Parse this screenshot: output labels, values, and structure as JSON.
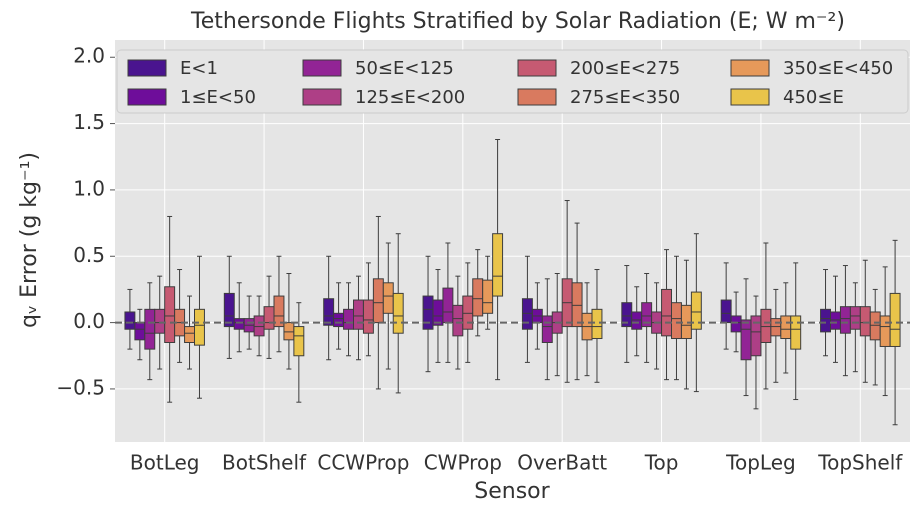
{
  "chart_data": {
    "type": "box",
    "title": "Tethersonde Flights Stratified by Solar Radiation (E; W m⁻²)",
    "xlabel": "Sensor",
    "ylabel": "qᵥ Error (g kg⁻¹)",
    "categories": [
      "BotLeg",
      "BotShelf",
      "CCWProp",
      "CWProp",
      "OverBatt",
      "Top",
      "TopLeg",
      "TopShelf"
    ],
    "ylim": [
      -0.9,
      2.13
    ],
    "yticks": [
      {
        "value": -0.5,
        "label": "−0.5"
      },
      {
        "value": 0,
        "label": "0.0"
      },
      {
        "value": 0.5,
        "label": "0.5"
      },
      {
        "value": 1,
        "label": "1.0"
      },
      {
        "value": 1.5,
        "label": "1.5"
      },
      {
        "value": 2,
        "label": "2.0"
      }
    ],
    "grid": true,
    "reference_line": 0,
    "legend": "top",
    "series": [
      {
        "name": "E<1",
        "color": "#4a148f",
        "whislo": [
          -0.2,
          -0.27,
          -0.28,
          -0.37,
          -0.3,
          -0.3,
          -0.2,
          -0.25
        ],
        "q1": [
          -0.05,
          -0.03,
          -0.02,
          -0.05,
          -0.05,
          -0.03,
          0.0,
          -0.07
        ],
        "med": [
          0.0,
          0.05,
          0.05,
          0.1,
          0.07,
          0.05,
          0.07,
          0.03
        ],
        "q3": [
          0.08,
          0.22,
          0.18,
          0.2,
          0.18,
          0.15,
          0.17,
          0.1
        ],
        "whishi": [
          0.25,
          0.5,
          0.5,
          0.5,
          0.5,
          0.43,
          0.45,
          0.4
        ]
      },
      {
        "name": "1≤E<50",
        "color": "#6e0d9a",
        "whislo": [
          -0.28,
          -0.22,
          -0.2,
          -0.3,
          -0.2,
          -0.25,
          -0.22,
          -0.3
        ],
        "q1": [
          -0.13,
          -0.05,
          -0.03,
          -0.02,
          0.0,
          -0.05,
          -0.07,
          -0.05
        ],
        "med": [
          -0.05,
          0.0,
          0.03,
          0.05,
          0.05,
          0.02,
          0.0,
          0.02
        ],
        "q3": [
          0.0,
          0.03,
          0.07,
          0.17,
          0.1,
          0.08,
          0.05,
          0.08
        ],
        "whishi": [
          0.1,
          0.3,
          0.3,
          0.4,
          0.3,
          0.27,
          0.23,
          0.35
        ]
      },
      {
        "name": "50≤E<125",
        "color": "#922495",
        "whislo": [
          -0.43,
          -0.2,
          -0.25,
          -0.3,
          -0.43,
          -0.3,
          -0.55,
          -0.4
        ],
        "q1": [
          -0.2,
          -0.07,
          -0.05,
          0.0,
          -0.15,
          -0.03,
          -0.28,
          -0.08
        ],
        "med": [
          -0.08,
          -0.02,
          0.0,
          0.08,
          -0.03,
          0.05,
          -0.05,
          0.03
        ],
        "q3": [
          0.1,
          0.03,
          0.1,
          0.26,
          0.05,
          0.15,
          0.02,
          0.12
        ],
        "whishi": [
          0.3,
          0.2,
          0.3,
          0.6,
          0.33,
          0.37,
          0.33,
          0.43
        ]
      },
      {
        "name": "125≤E<200",
        "color": "#ae3f86",
        "whislo": [
          -0.35,
          -0.25,
          -0.28,
          -0.35,
          -0.4,
          -0.35,
          -0.65,
          -0.37
        ],
        "q1": [
          -0.08,
          -0.1,
          -0.05,
          -0.1,
          -0.08,
          -0.08,
          -0.25,
          -0.05
        ],
        "med": [
          0.0,
          -0.03,
          0.05,
          0.03,
          0.0,
          0.0,
          -0.07,
          0.05
        ],
        "q3": [
          0.1,
          0.05,
          0.17,
          0.13,
          0.08,
          0.08,
          0.05,
          0.12
        ],
        "whishi": [
          0.35,
          0.2,
          0.35,
          0.35,
          0.37,
          0.3,
          0.2,
          0.3
        ]
      },
      {
        "name": "200≤E<275",
        "color": "#c65a72",
        "whislo": [
          -0.6,
          -0.27,
          -0.25,
          -0.3,
          -0.45,
          -0.43,
          -0.5,
          -0.45
        ],
        "q1": [
          -0.15,
          -0.05,
          -0.08,
          -0.05,
          -0.03,
          -0.1,
          -0.15,
          -0.1
        ],
        "med": [
          0.05,
          0.0,
          0.02,
          0.07,
          0.15,
          0.05,
          -0.03,
          0.0
        ],
        "q3": [
          0.27,
          0.12,
          0.17,
          0.2,
          0.33,
          0.25,
          0.1,
          0.12
        ],
        "whishi": [
          0.8,
          0.35,
          0.45,
          0.45,
          0.92,
          0.55,
          0.6,
          0.47
        ]
      },
      {
        "name": "275≤E<350",
        "color": "#d97a5f",
        "whislo": [
          -0.3,
          -0.22,
          -0.5,
          -0.1,
          -0.43,
          -0.43,
          -0.45,
          -0.47
        ],
        "q1": [
          -0.1,
          -0.03,
          0.0,
          0.05,
          -0.03,
          -0.12,
          -0.1,
          -0.13
        ],
        "med": [
          0.0,
          0.05,
          0.15,
          0.18,
          0.13,
          0.03,
          -0.03,
          -0.02
        ],
        "q3": [
          0.1,
          0.2,
          0.33,
          0.33,
          0.3,
          0.15,
          0.03,
          0.08
        ],
        "whishi": [
          0.4,
          0.5,
          0.8,
          0.55,
          0.75,
          0.5,
          0.25,
          0.25
        ]
      },
      {
        "name": "350≤E<450",
        "color": "#e6995a",
        "whislo": [
          -0.35,
          -0.35,
          -0.35,
          -0.05,
          -0.4,
          -0.5,
          -0.38,
          -0.55
        ],
        "q1": [
          -0.15,
          -0.13,
          0.07,
          0.07,
          -0.13,
          -0.12,
          -0.12,
          -0.18
        ],
        "med": [
          -0.08,
          -0.07,
          0.2,
          0.15,
          -0.03,
          -0.02,
          -0.05,
          -0.03
        ],
        "q3": [
          -0.03,
          0.0,
          0.3,
          0.32,
          0.07,
          0.13,
          0.05,
          0.05
        ],
        "whishi": [
          0.2,
          0.37,
          0.6,
          0.5,
          0.3,
          0.47,
          0.3,
          0.42
        ]
      },
      {
        "name": "450≤E",
        "color": "#e9c44a",
        "whislo": [
          -0.57,
          -0.6,
          -0.53,
          -0.43,
          -0.45,
          -0.52,
          -0.58,
          -0.77
        ],
        "q1": [
          -0.17,
          -0.25,
          -0.08,
          0.2,
          -0.12,
          -0.05,
          -0.2,
          -0.18
        ],
        "med": [
          -0.02,
          -0.1,
          0.05,
          0.35,
          -0.03,
          0.08,
          -0.05,
          -0.05
        ],
        "q3": [
          0.1,
          -0.03,
          0.22,
          0.67,
          0.1,
          0.23,
          0.05,
          0.22
        ],
        "whishi": [
          0.5,
          0.15,
          0.67,
          1.38,
          0.4,
          0.67,
          0.45,
          0.62
        ]
      }
    ]
  }
}
